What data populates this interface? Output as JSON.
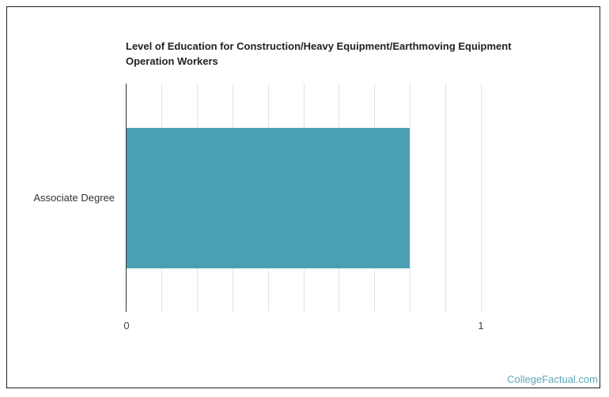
{
  "chart_data": {
    "type": "bar",
    "orientation": "horizontal",
    "title": "Level of Education for Construction/Heavy Equipment/Earthmoving Equipment Operation Workers",
    "categories": [
      "Associate Degree"
    ],
    "values": [
      0.8
    ],
    "xlabel": "",
    "ylabel": "",
    "xlim": [
      0,
      1
    ],
    "x_ticks": [
      "0",
      "1"
    ],
    "grid": true,
    "grid_step": 0.1,
    "bar_color": "#4aa0b2",
    "legend": null
  },
  "title": "Level of Education for Construction/Heavy Equipment/Earthmoving Equipment Operation Workers",
  "category_label": "Associate Degree",
  "ticks": {
    "zero": "0",
    "one": "1"
  },
  "credit": "CollegeFactual.com"
}
